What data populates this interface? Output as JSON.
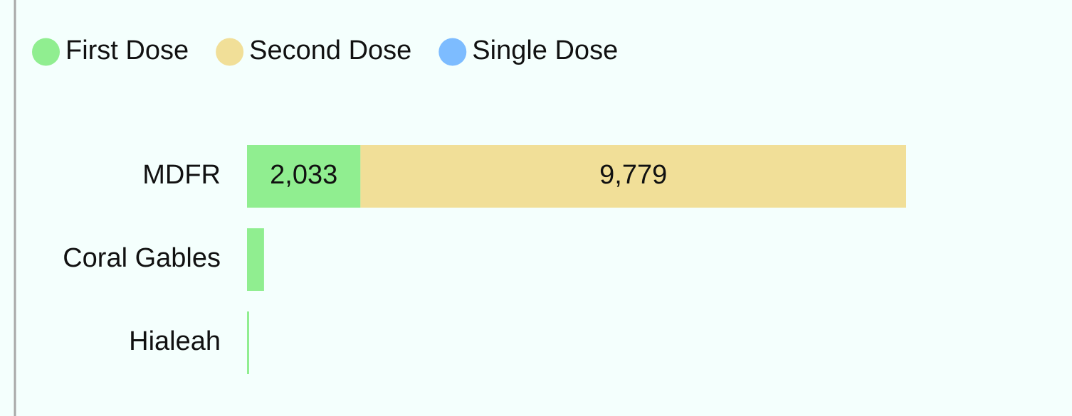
{
  "chart_data": {
    "type": "stacked-bar-horizontal",
    "categories": [
      "MDFR",
      "Coral Gables",
      "Hialeah"
    ],
    "series": [
      {
        "name": "First Dose",
        "color": "#90ee90",
        "values": [
          2033,
          305,
          38
        ],
        "value_labels": [
          "2,033",
          null,
          null
        ]
      },
      {
        "name": "Second Dose",
        "color": "#f1df98",
        "values": [
          9779,
          0,
          0
        ],
        "value_labels": [
          "9,779",
          null,
          null
        ]
      },
      {
        "name": "Single Dose",
        "color": "#7dbcff",
        "values": [
          0,
          0,
          0
        ],
        "value_labels": [
          null,
          null,
          null
        ]
      }
    ],
    "legend": "top-left"
  }
}
